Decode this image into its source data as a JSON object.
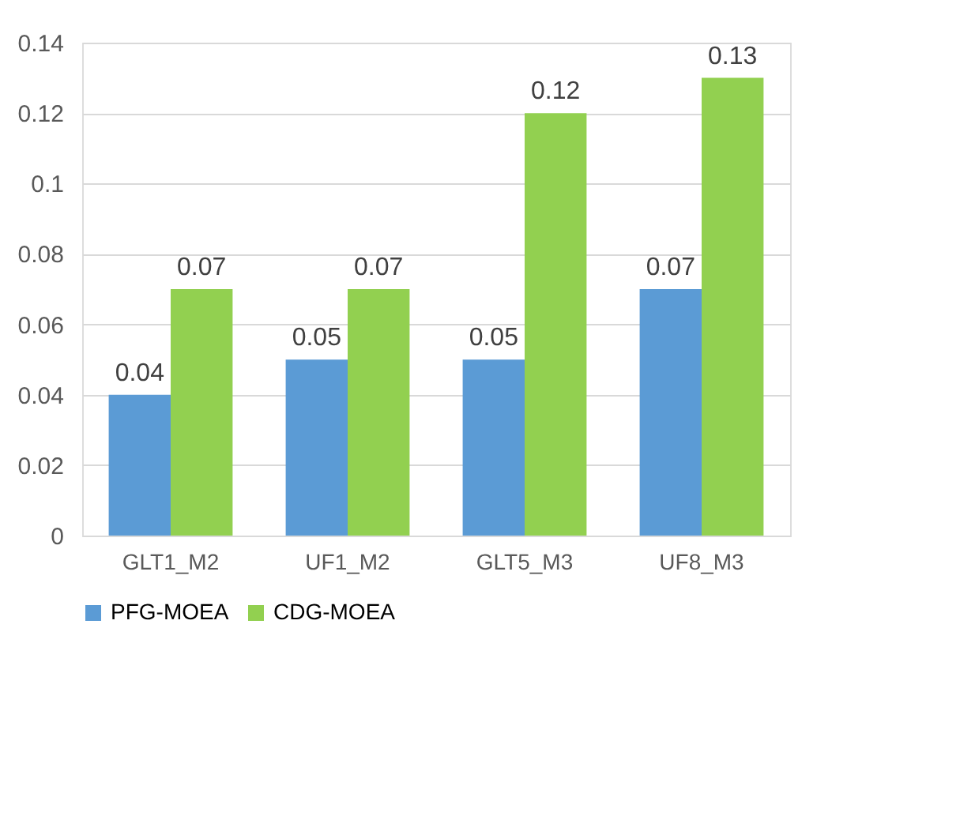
{
  "chart_data": {
    "type": "bar",
    "categories": [
      "GLT1_M2",
      "UF1_M2",
      "GLT5_M3",
      "UF8_M3"
    ],
    "series": [
      {
        "name": "PFG-MOEA",
        "color": "#5b9bd5",
        "values": [
          0.04,
          0.05,
          0.05,
          0.07
        ]
      },
      {
        "name": "CDG-MOEA",
        "color": "#92d050",
        "values": [
          0.07,
          0.07,
          0.12,
          0.13
        ]
      }
    ],
    "ylim": [
      0,
      0.14
    ],
    "yticks": [
      0,
      0.02,
      0.04,
      0.06,
      0.08,
      0.1,
      0.12,
      0.14
    ],
    "grid": "y",
    "legend": "bottom",
    "data_labels": true
  }
}
